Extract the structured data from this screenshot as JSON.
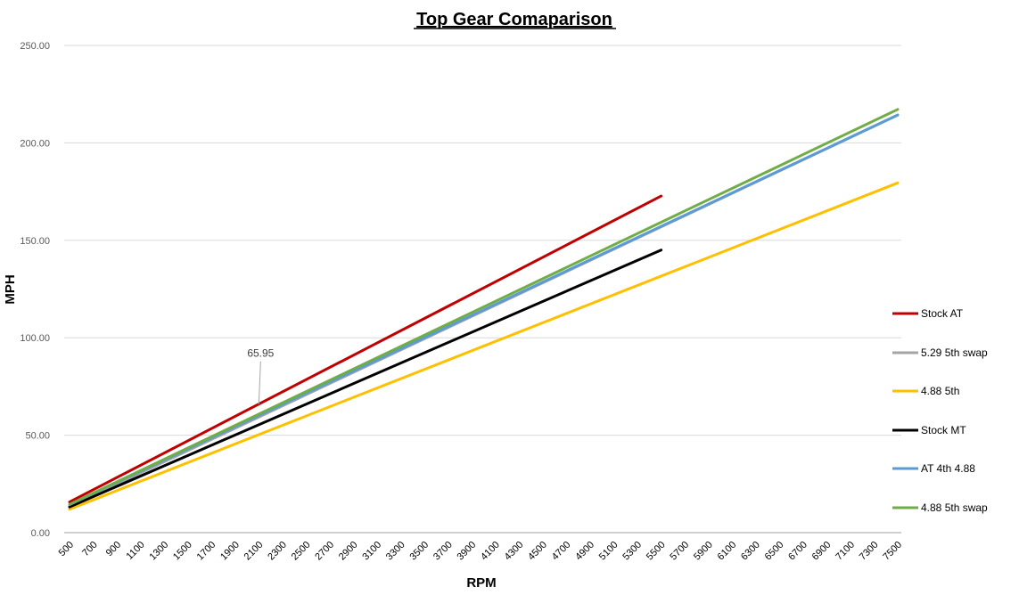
{
  "chart_data": {
    "type": "line",
    "title": "Top Gear Comaparison",
    "xlabel": "RPM",
    "ylabel": "MPH",
    "ylim": [
      0,
      250
    ],
    "y_ticks": [
      "0.00",
      "50.00",
      "100.00",
      "150.00",
      "200.00",
      "250.00"
    ],
    "x_tick_labels": [
      "500",
      "700",
      "900",
      "1100",
      "1300",
      "1500",
      "1700",
      "1900",
      "2100",
      "2300",
      "2500",
      "2700",
      "2900",
      "3100",
      "3300",
      "3500",
      "3700",
      "3900",
      "4100",
      "4300",
      "4500",
      "4700",
      "4900",
      "5100",
      "5300",
      "5500",
      "5700",
      "5900",
      "6100",
      "6300",
      "6500",
      "6700",
      "6900",
      "7100",
      "7300",
      "7500"
    ],
    "x_range": [
      500,
      7500
    ],
    "grid": "horizontal",
    "legend_position": "right",
    "series": [
      {
        "name": "Stock AT",
        "color": "#c00000",
        "x": [
          500,
          5500
        ],
        "y": [
          15.7,
          172.7
        ]
      },
      {
        "name": "5.29 5th swap",
        "color": "#a5a5a5",
        "x": [
          500,
          7500
        ],
        "y": [
          13.4,
          214.3
        ]
      },
      {
        "name": "4.88 5th",
        "color": "#ffc000",
        "x": [
          500,
          7500
        ],
        "y": [
          12.0,
          179.5
        ]
      },
      {
        "name": "Stock MT",
        "color": "#000000",
        "x": [
          500,
          5500
        ],
        "y": [
          13.2,
          145.0
        ]
      },
      {
        "name": "AT 4th 4.88",
        "color": "#5b9bd5",
        "x": [
          500,
          7500
        ],
        "y": [
          14.3,
          214.3
        ]
      },
      {
        "name": "4.88 5th swap",
        "color": "#70ad47",
        "x": [
          500,
          7500
        ],
        "y": [
          14.5,
          217.2
        ]
      }
    ],
    "annotation": {
      "label": "65.95",
      "series": "Stock AT",
      "x": 2100,
      "y": 65.95
    }
  }
}
